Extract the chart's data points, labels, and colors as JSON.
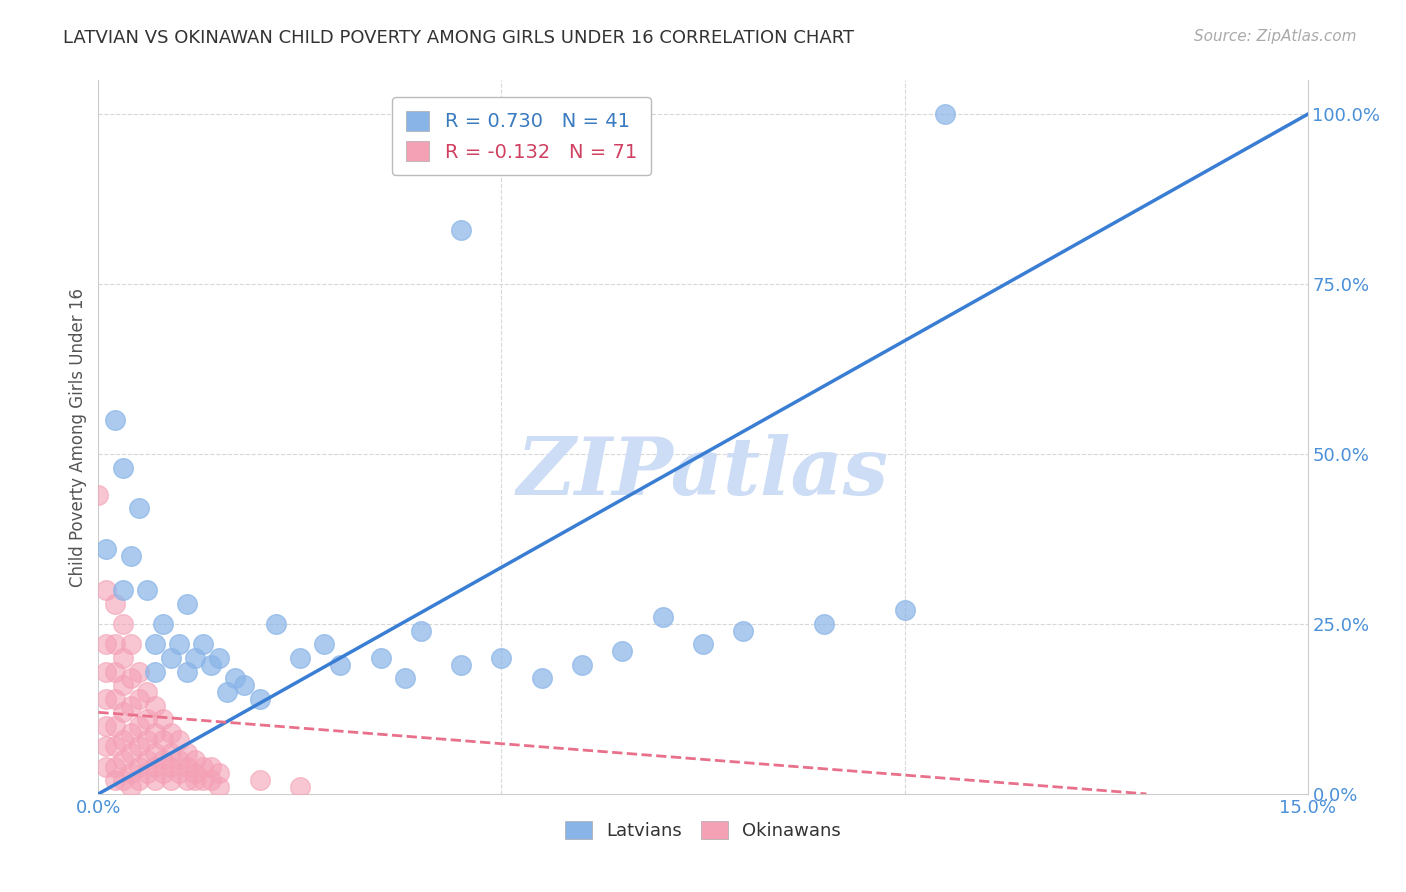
{
  "title": "LATVIAN VS OKINAWAN CHILD POVERTY AMONG GIRLS UNDER 16 CORRELATION CHART",
  "source": "Source: ZipAtlas.com",
  "ylabel": "Child Poverty Among Girls Under 16",
  "xlim": [
    0.0,
    0.15
  ],
  "ylim": [
    0.0,
    1.05
  ],
  "ytick_labels": [
    "0.0%",
    "25.0%",
    "50.0%",
    "75.0%",
    "100.0%"
  ],
  "yticks": [
    0.0,
    0.25,
    0.5,
    0.75,
    1.0
  ],
  "latvian_R": 0.73,
  "latvian_N": 41,
  "okinawan_R": -0.132,
  "okinawan_N": 71,
  "latvian_color": "#89b4e8",
  "okinawan_color": "#f4a0b5",
  "latvian_line_color": "#3a7ed4",
  "okinawan_line_color": "#e8708a",
  "watermark": "ZIPatlas",
  "watermark_color": "#ddeeff",
  "background_color": "#ffffff",
  "grid_color": "#d8d8d8",
  "legend_latvian_color": "#3a7abf",
  "legend_okinawan_color": "#d04060",
  "latvian_scatter": [
    [
      0.001,
      0.36
    ],
    [
      0.002,
      0.55
    ],
    [
      0.003,
      0.48
    ],
    [
      0.003,
      0.3
    ],
    [
      0.004,
      0.35
    ],
    [
      0.005,
      0.42
    ],
    [
      0.006,
      0.3
    ],
    [
      0.007,
      0.22
    ],
    [
      0.007,
      0.18
    ],
    [
      0.008,
      0.25
    ],
    [
      0.009,
      0.2
    ],
    [
      0.01,
      0.22
    ],
    [
      0.011,
      0.28
    ],
    [
      0.011,
      0.18
    ],
    [
      0.012,
      0.2
    ],
    [
      0.013,
      0.22
    ],
    [
      0.014,
      0.19
    ],
    [
      0.015,
      0.2
    ],
    [
      0.016,
      0.15
    ],
    [
      0.017,
      0.17
    ],
    [
      0.018,
      0.16
    ],
    [
      0.02,
      0.14
    ],
    [
      0.022,
      0.25
    ],
    [
      0.025,
      0.2
    ],
    [
      0.028,
      0.22
    ],
    [
      0.03,
      0.19
    ],
    [
      0.035,
      0.2
    ],
    [
      0.038,
      0.17
    ],
    [
      0.04,
      0.24
    ],
    [
      0.045,
      0.19
    ],
    [
      0.05,
      0.2
    ],
    [
      0.055,
      0.17
    ],
    [
      0.06,
      0.19
    ],
    [
      0.065,
      0.21
    ],
    [
      0.07,
      0.26
    ],
    [
      0.075,
      0.22
    ],
    [
      0.08,
      0.24
    ],
    [
      0.09,
      0.25
    ],
    [
      0.1,
      0.27
    ],
    [
      0.105,
      1.0
    ],
    [
      0.045,
      0.83
    ]
  ],
  "okinawan_scatter": [
    [
      0.0,
      0.44
    ],
    [
      0.001,
      0.3
    ],
    [
      0.001,
      0.22
    ],
    [
      0.001,
      0.18
    ],
    [
      0.001,
      0.14
    ],
    [
      0.001,
      0.1
    ],
    [
      0.001,
      0.07
    ],
    [
      0.001,
      0.04
    ],
    [
      0.002,
      0.28
    ],
    [
      0.002,
      0.22
    ],
    [
      0.002,
      0.18
    ],
    [
      0.002,
      0.14
    ],
    [
      0.002,
      0.1
    ],
    [
      0.002,
      0.07
    ],
    [
      0.002,
      0.04
    ],
    [
      0.002,
      0.02
    ],
    [
      0.003,
      0.25
    ],
    [
      0.003,
      0.2
    ],
    [
      0.003,
      0.16
    ],
    [
      0.003,
      0.12
    ],
    [
      0.003,
      0.08
    ],
    [
      0.003,
      0.05
    ],
    [
      0.003,
      0.02
    ],
    [
      0.004,
      0.22
    ],
    [
      0.004,
      0.17
    ],
    [
      0.004,
      0.13
    ],
    [
      0.004,
      0.09
    ],
    [
      0.004,
      0.06
    ],
    [
      0.004,
      0.03
    ],
    [
      0.004,
      0.01
    ],
    [
      0.005,
      0.18
    ],
    [
      0.005,
      0.14
    ],
    [
      0.005,
      0.1
    ],
    [
      0.005,
      0.07
    ],
    [
      0.005,
      0.04
    ],
    [
      0.005,
      0.02
    ],
    [
      0.006,
      0.15
    ],
    [
      0.006,
      0.11
    ],
    [
      0.006,
      0.08
    ],
    [
      0.006,
      0.05
    ],
    [
      0.006,
      0.03
    ],
    [
      0.007,
      0.13
    ],
    [
      0.007,
      0.09
    ],
    [
      0.007,
      0.06
    ],
    [
      0.007,
      0.04
    ],
    [
      0.007,
      0.02
    ],
    [
      0.008,
      0.11
    ],
    [
      0.008,
      0.08
    ],
    [
      0.008,
      0.05
    ],
    [
      0.008,
      0.03
    ],
    [
      0.009,
      0.09
    ],
    [
      0.009,
      0.06
    ],
    [
      0.009,
      0.04
    ],
    [
      0.009,
      0.02
    ],
    [
      0.01,
      0.08
    ],
    [
      0.01,
      0.05
    ],
    [
      0.01,
      0.03
    ],
    [
      0.011,
      0.06
    ],
    [
      0.011,
      0.04
    ],
    [
      0.011,
      0.02
    ],
    [
      0.012,
      0.05
    ],
    [
      0.012,
      0.03
    ],
    [
      0.012,
      0.02
    ],
    [
      0.013,
      0.04
    ],
    [
      0.013,
      0.02
    ],
    [
      0.014,
      0.04
    ],
    [
      0.014,
      0.02
    ],
    [
      0.015,
      0.03
    ],
    [
      0.015,
      0.01
    ],
    [
      0.02,
      0.02
    ],
    [
      0.025,
      0.01
    ]
  ],
  "latvian_line_x": [
    0.0,
    0.15
  ],
  "latvian_line_y": [
    0.0,
    1.0
  ],
  "okinawan_line_x": [
    0.0,
    0.13
  ],
  "okinawan_line_y": [
    0.12,
    0.0
  ]
}
